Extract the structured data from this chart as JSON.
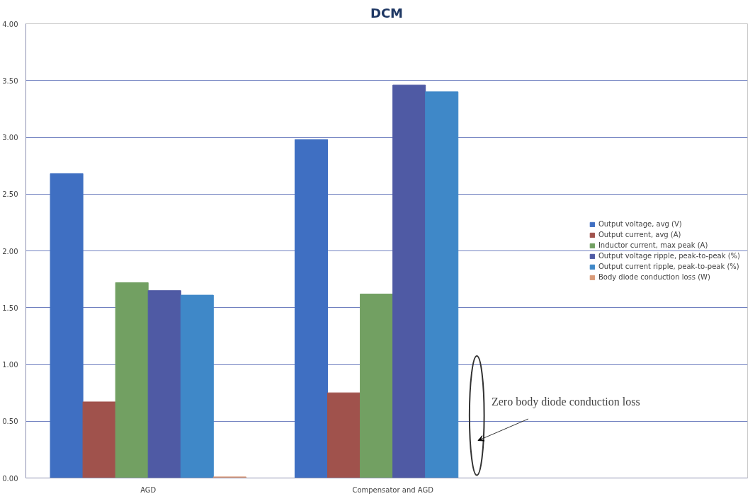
{
  "chart_data": {
    "type": "bar",
    "title": "DCM",
    "categories": [
      "AGD",
      "Compensator and AGD"
    ],
    "series": [
      {
        "name": "Output voltage, avg (V)",
        "color": "#3f6fc2",
        "values": [
          2.68,
          2.98
        ]
      },
      {
        "name": "Output current, avg (A)",
        "color": "#a0524c",
        "values": [
          0.67,
          0.75
        ]
      },
      {
        "name": "Inductor current, max peak (A)",
        "color": "#72a062",
        "values": [
          1.72,
          1.62
        ]
      },
      {
        "name": "Output voltage ripple, peak-to-peak (%)",
        "color": "#4f5aa4",
        "values": [
          1.65,
          3.46
        ]
      },
      {
        "name": "Output current ripple, peak-to-peak (%)",
        "color": "#3f88c8",
        "values": [
          1.61,
          3.4
        ]
      },
      {
        "name": "Body diode conduction loss (W)",
        "color": "#d99a78",
        "values": [
          0.01,
          0
        ]
      }
    ],
    "ylim": [
      0,
      4
    ],
    "yticks": [
      {
        "value": 0,
        "label": "0.00"
      },
      {
        "value": 0.5,
        "label": "0.50"
      },
      {
        "value": 1,
        "label": "1.00"
      },
      {
        "value": 1.5,
        "label": "1.50"
      },
      {
        "value": 2,
        "label": "2.00"
      },
      {
        "value": 2.5,
        "label": "2.50"
      },
      {
        "value": 3,
        "label": "3.00"
      },
      {
        "value": 3.5,
        "label": "3.50"
      },
      {
        "value": 4,
        "label": "4.00"
      }
    ],
    "grid": "y",
    "legend": "right",
    "annotations": [
      "Zero body diode conduction loss"
    ]
  }
}
